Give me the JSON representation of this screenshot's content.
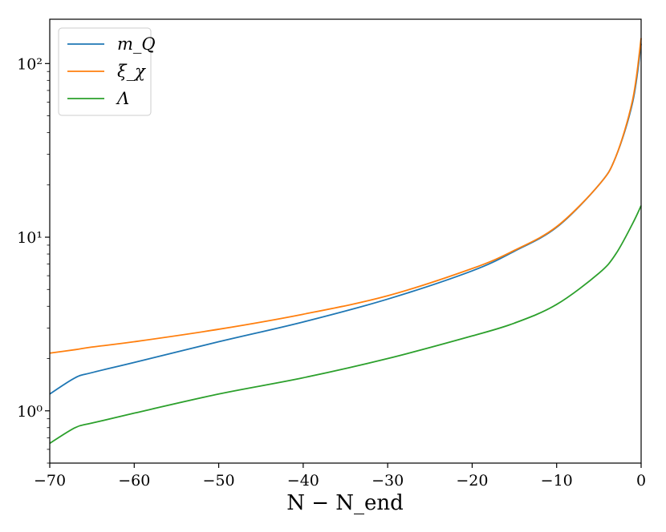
{
  "chart_data": {
    "type": "line",
    "title": "",
    "xlabel": "N − N_end",
    "ylabel": "",
    "xlim": [
      -70,
      0
    ],
    "ylim": [
      0.5,
      180
    ],
    "yscale": "log",
    "grid": false,
    "legend_position": "top-left",
    "x_ticks": [
      -70,
      -60,
      -50,
      -40,
      -30,
      -20,
      -10,
      0
    ],
    "x_tick_labels": [
      "−70",
      "−60",
      "−50",
      "−40",
      "−30",
      "−20",
      "−10",
      "0"
    ],
    "y_ticks": [
      1,
      10,
      100
    ],
    "y_tick_labels": [
      "10⁰",
      "10¹",
      "10²"
    ],
    "x": [
      -70,
      -67,
      -65,
      -60,
      -50,
      -40,
      -30,
      -20,
      -15,
      -10,
      -5,
      -3,
      -1,
      0
    ],
    "series": [
      {
        "name": "m_Q",
        "color": "#1f77b4",
        "values": [
          1.25,
          1.55,
          1.66,
          1.9,
          2.5,
          3.25,
          4.4,
          6.4,
          8.3,
          11.4,
          20,
          29,
          60,
          130
        ]
      },
      {
        "name": "ξ_χ",
        "color": "#ff7f0e",
        "values": [
          2.15,
          2.25,
          2.33,
          2.5,
          2.95,
          3.6,
          4.6,
          6.6,
          8.4,
          11.5,
          20,
          29,
          62,
          140
        ]
      },
      {
        "name": "Λ",
        "color": "#2ca02c",
        "values": [
          0.65,
          0.8,
          0.85,
          0.97,
          1.25,
          1.55,
          2.0,
          2.7,
          3.2,
          4.1,
          6.2,
          8.0,
          12.0,
          15.2
        ]
      }
    ]
  }
}
